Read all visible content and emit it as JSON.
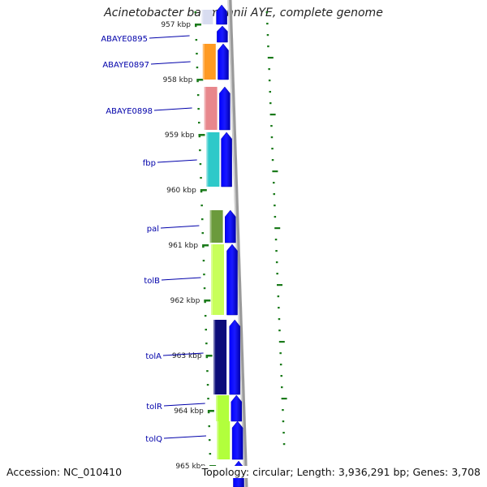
{
  "title": "Acinetobacter baumannii AYE, complete genome",
  "footer": {
    "accession": "Accession: NC_010410",
    "info": "Topology: circular; Length: 3,936,291 bp; Genes: 3,708"
  },
  "colors": {
    "forward_arrows": "#0000ee",
    "label_text": "#0000aa",
    "tick": "#1a7a1a",
    "backbone": "#999999"
  },
  "ticks": [
    "957 kbp",
    "958 kbp",
    "959 kbp",
    "960 kbp",
    "961 kbp",
    "962 kbp",
    "963 kbp",
    "964 kbp",
    "965 kbp"
  ],
  "genes": [
    {
      "name": "ABAYE0895",
      "color": "#d8dcf0"
    },
    {
      "name": "ABAYE0897",
      "color": "#ff9a22"
    },
    {
      "name": "ABAYE0898",
      "color": "#e8878c"
    },
    {
      "name": "fbp",
      "color": "#2ec9c9"
    },
    {
      "name": "pal",
      "color": "#6b9a3c"
    },
    {
      "name": "tolB",
      "color": "#c8ff5a"
    },
    {
      "name": "tolA",
      "color": "#0c0c7a"
    },
    {
      "name": "tolR",
      "color": "#b2ff3c"
    },
    {
      "name": "tolQ",
      "color": "#b2ff3c"
    }
  ]
}
